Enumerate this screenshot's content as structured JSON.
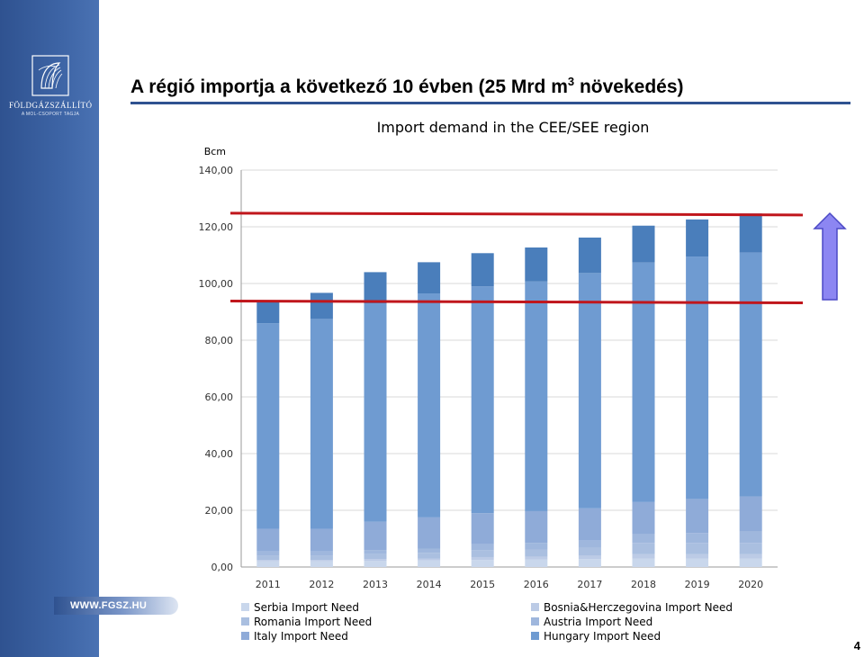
{
  "slide": {
    "main_title": "A régió importja a következő 10 évben (25 Mrd m",
    "main_title_sup": "3",
    "main_title_end": " növekedés)",
    "logo_name": "FÖLDGÁZSZÁLLÍTÓ",
    "logo_tagline": "A MOL-CSOPORT TAGJA",
    "website": "WWW.FGSZ.HU",
    "page_number": "4"
  },
  "colors": {
    "sidebar": "#2f5290",
    "title_rule": "#2f5290",
    "reference_line": "#c0161c",
    "arrow_fill": "#8c86f2",
    "arrow_stroke": "#4b49c6"
  },
  "chart_data": {
    "type": "bar",
    "stacked": true,
    "title": "Import demand in the CEE/SEE region",
    "ylabel": "Bcm",
    "ylim": [
      0,
      140
    ],
    "yticks": [
      0,
      20,
      40,
      60,
      80,
      100,
      120,
      140
    ],
    "ytick_labels": [
      "0,00",
      "20,00",
      "40,00",
      "60,00",
      "80,00",
      "100,00",
      "120,00",
      "140,00"
    ],
    "grid": true,
    "legend_position": "bottom",
    "categories": [
      "2011",
      "2012",
      "2013",
      "2014",
      "2015",
      "2016",
      "2017",
      "2018",
      "2019",
      "2020"
    ],
    "series": [
      {
        "name": "Serbia Import Need",
        "color": "#c9d7ec",
        "values": [
          2.0,
          2.0,
          2.2,
          2.3,
          2.5,
          2.6,
          2.8,
          3.0,
          3.0,
          3.0
        ]
      },
      {
        "name": "Bosnia&Herczegovina Import Need",
        "color": "#bccbe6",
        "values": [
          0.5,
          0.5,
          0.6,
          0.7,
          1.0,
          1.0,
          1.2,
          1.5,
          1.5,
          1.5
        ]
      },
      {
        "name": "Romania Import Need",
        "color": "#aabfe0",
        "values": [
          1.5,
          1.5,
          1.7,
          2.0,
          2.5,
          2.6,
          2.8,
          4.0,
          4.0,
          4.0
        ]
      },
      {
        "name": "Austria Import Need",
        "color": "#9fb7dd",
        "values": [
          1.5,
          1.5,
          1.5,
          1.5,
          2.0,
          2.3,
          2.5,
          3.0,
          3.5,
          4.0
        ]
      },
      {
        "name": "Italy Import Need",
        "color": "#8fabd8",
        "values": [
          8.0,
          8.0,
          10.0,
          11.0,
          11.0,
          11.2,
          11.4,
          11.4,
          12.0,
          12.4
        ]
      },
      {
        "name": "Hungary Import Need",
        "color": "#6f9bd1",
        "values": [
          72.5,
          74.0,
          77.0,
          79.0,
          80.0,
          81.0,
          83.0,
          84.5,
          85.5,
          86.0
        ]
      },
      {
        "name": "",
        "color": "#4a7ebb",
        "values": [
          7.5,
          9.2,
          11.0,
          11.0,
          11.7,
          12.0,
          12.5,
          13.0,
          13.1,
          13.8
        ]
      }
    ],
    "reference_lines": [
      93.5,
      124.5
    ],
    "annotation": "upward-arrow"
  }
}
